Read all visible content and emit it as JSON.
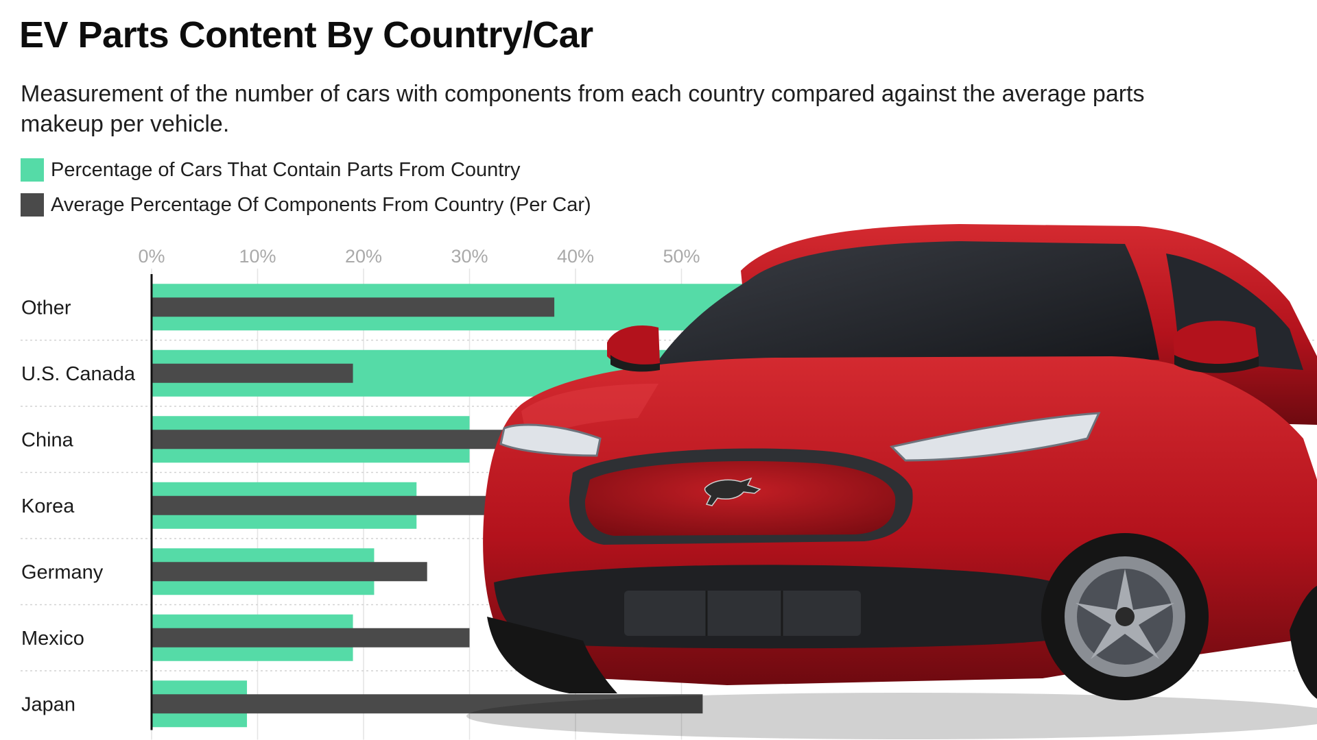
{
  "title": "EV Parts Content By Country/Car",
  "subtitle": "Measurement of the number of cars with components from each country compared against the average parts makeup per vehicle.",
  "legend": [
    {
      "label": "Percentage of Cars That Contain Parts From Country",
      "color": "#55dba7"
    },
    {
      "label": "Average Percentage Of Components From Country (Per Car)",
      "color": "#4a4a4a"
    }
  ],
  "colors": {
    "green": "#55dba7",
    "dark": "#4a4a4a",
    "grid": "#e4e4e4",
    "tick_text": "#a9a9a9",
    "axis": "#111111",
    "car_body": "#b3121c"
  },
  "image": {
    "subject": "red electric crossover SUV (front three-quarter view)",
    "badge_icon": "running-horse-icon"
  },
  "chart_data": {
    "type": "bar",
    "orientation": "horizontal",
    "categories": [
      "Other",
      "U.S. Canada",
      "China",
      "Korea",
      "Germany",
      "Mexico",
      "Japan"
    ],
    "series": [
      {
        "name": "Percentage of Cars That Contain Parts From Country",
        "values": [
          62,
          60,
          30,
          25,
          21,
          19,
          9
        ]
      },
      {
        "name": "Average Percentage Of Components From Country (Per Car)",
        "values": [
          38,
          19,
          34,
          32,
          26,
          30,
          52
        ]
      }
    ],
    "x_ticks": [
      "0%",
      "10%",
      "20%",
      "30%",
      "40%",
      "50%"
    ],
    "xlim": [
      0,
      60
    ],
    "grid": true,
    "legend_position": "top-left"
  }
}
